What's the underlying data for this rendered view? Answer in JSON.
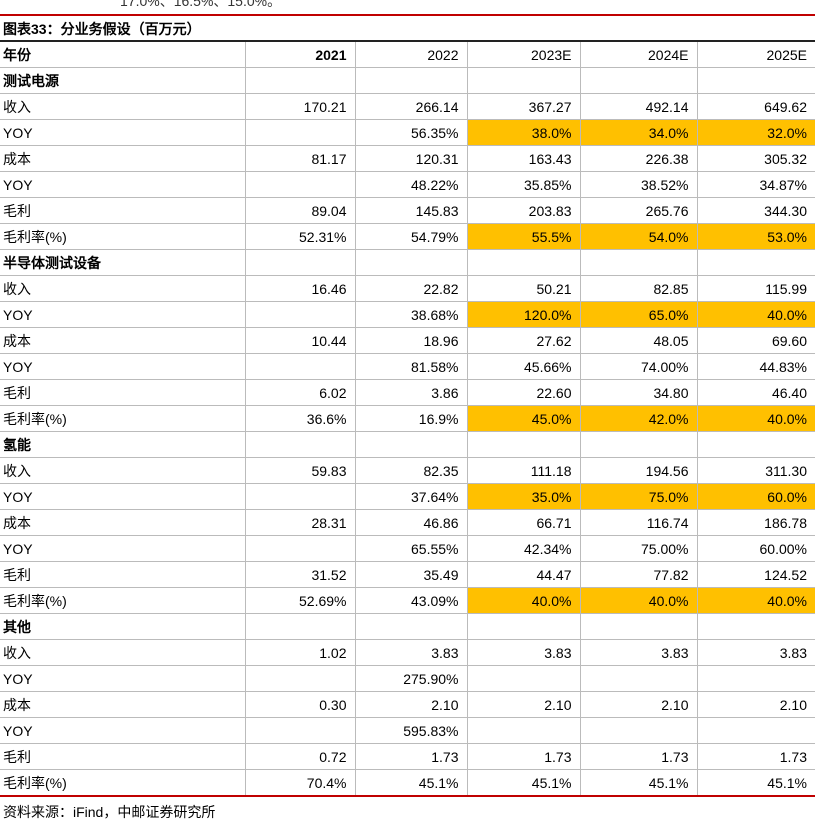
{
  "intro": "17.0%、16.5%、15.0%。",
  "title": "图表33：分业务假设（百万元）",
  "table": {
    "highlight_color": "#ffc000",
    "header": [
      "年份",
      "2021",
      "2022",
      "2023E",
      "2024E",
      "2025E"
    ],
    "rows": [
      {
        "cells": [
          "测试电源"
        ],
        "section": true
      },
      {
        "cells": [
          "收入",
          "170.21",
          "266.14",
          "367.27",
          "492.14",
          "649.62"
        ]
      },
      {
        "cells": [
          "YOY",
          null,
          "56.35%",
          "38.0%",
          "34.0%",
          "32.0%"
        ],
        "highlight": true
      },
      {
        "cells": [
          "成本",
          "81.17",
          "120.31",
          "163.43",
          "226.38",
          "305.32"
        ]
      },
      {
        "cells": [
          "YOY",
          null,
          "48.22%",
          "35.85%",
          "38.52%",
          "34.87%"
        ]
      },
      {
        "cells": [
          "毛利",
          "89.04",
          "145.83",
          "203.83",
          "265.76",
          "344.30"
        ]
      },
      {
        "cells": [
          "毛利率(%)",
          "52.31%",
          "54.79%",
          "55.5%",
          "54.0%",
          "53.0%"
        ],
        "highlight": true
      },
      {
        "cells": [
          "半导体测试设备"
        ],
        "section": true
      },
      {
        "cells": [
          "收入",
          "16.46",
          "22.82",
          "50.21",
          "82.85",
          "115.99"
        ]
      },
      {
        "cells": [
          "YOY",
          null,
          "38.68%",
          "120.0%",
          "65.0%",
          "40.0%"
        ],
        "highlight": true
      },
      {
        "cells": [
          "成本",
          "10.44",
          "18.96",
          "27.62",
          "48.05",
          "69.60"
        ]
      },
      {
        "cells": [
          "YOY",
          null,
          "81.58%",
          "45.66%",
          "74.00%",
          "44.83%"
        ]
      },
      {
        "cells": [
          "毛利",
          "6.02",
          "3.86",
          "22.60",
          "34.80",
          "46.40"
        ]
      },
      {
        "cells": [
          "毛利率(%)",
          "36.6%",
          "16.9%",
          "45.0%",
          "42.0%",
          "40.0%"
        ],
        "highlight": true
      },
      {
        "cells": [
          "氢能"
        ],
        "section": true
      },
      {
        "cells": [
          "收入",
          "59.83",
          "82.35",
          "111.18",
          "194.56",
          "311.30"
        ]
      },
      {
        "cells": [
          "YOY",
          null,
          "37.64%",
          "35.0%",
          "75.0%",
          "60.0%"
        ],
        "highlight": true
      },
      {
        "cells": [
          "成本",
          "28.31",
          "46.86",
          "66.71",
          "116.74",
          "186.78"
        ]
      },
      {
        "cells": [
          "YOY",
          null,
          "65.55%",
          "42.34%",
          "75.00%",
          "60.00%"
        ]
      },
      {
        "cells": [
          "毛利",
          "31.52",
          "35.49",
          "44.47",
          "77.82",
          "124.52"
        ]
      },
      {
        "cells": [
          "毛利率(%)",
          "52.69%",
          "43.09%",
          "40.0%",
          "40.0%",
          "40.0%"
        ],
        "highlight": true
      },
      {
        "cells": [
          "其他"
        ],
        "section": true
      },
      {
        "cells": [
          "收入",
          "1.02",
          "3.83",
          "3.83",
          "3.83",
          "3.83"
        ]
      },
      {
        "cells": [
          "YOY",
          null,
          "275.90%"
        ]
      },
      {
        "cells": [
          "成本",
          "0.30",
          "2.10",
          "2.10",
          "2.10",
          "2.10"
        ]
      },
      {
        "cells": [
          "YOY",
          null,
          "595.83%"
        ]
      },
      {
        "cells": [
          "毛利",
          "0.72",
          "1.73",
          "1.73",
          "1.73",
          "1.73"
        ]
      },
      {
        "cells": [
          "毛利率(%)",
          "70.4%",
          "45.1%",
          "45.1%",
          "45.1%",
          "45.1%"
        ]
      }
    ]
  },
  "source": "资料来源：iFind，中邮证券研究所"
}
